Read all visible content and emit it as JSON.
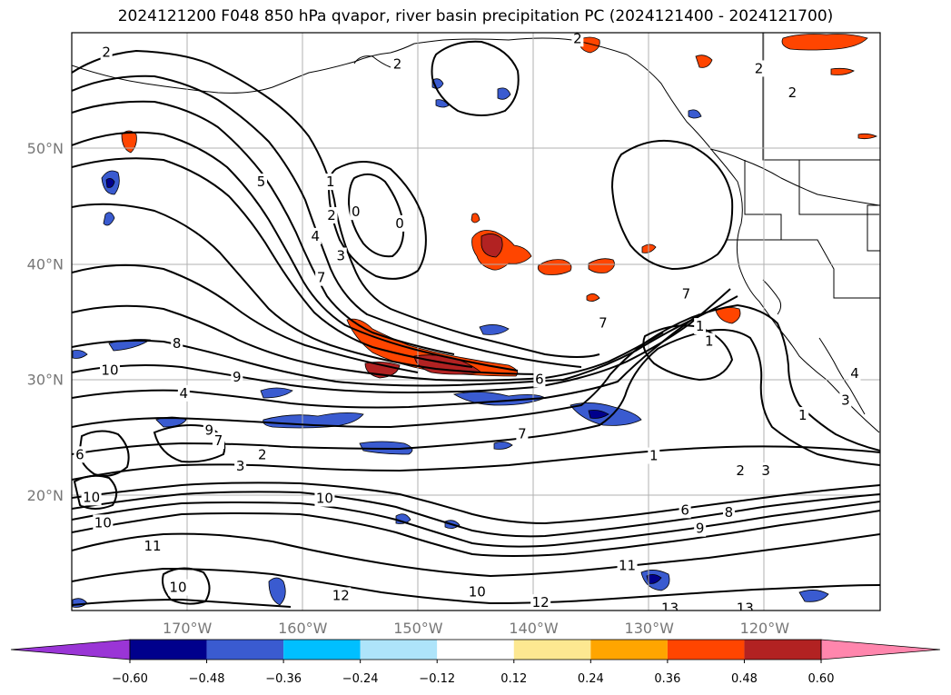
{
  "title": "2024121200 F048 850 hPa qvapor, river basin precipitation PC (2024121400 - 2024121700)",
  "map": {
    "lon_range": [
      -180,
      -110
    ],
    "lat_range": [
      10,
      60
    ],
    "lon_ticks": [
      {
        "value": -170,
        "label": "170°W"
      },
      {
        "value": -160,
        "label": "160°W"
      },
      {
        "value": -150,
        "label": "150°W"
      },
      {
        "value": -140,
        "label": "140°W"
      },
      {
        "value": -130,
        "label": "130°W"
      },
      {
        "value": -120,
        "label": "120°W"
      }
    ],
    "lat_ticks": [
      {
        "value": 20,
        "label": "20°N"
      },
      {
        "value": 30,
        "label": "30°N"
      },
      {
        "value": 40,
        "label": "40°N"
      },
      {
        "value": 50,
        "label": "50°N"
      }
    ],
    "gridlines": true,
    "contour_labels": [
      {
        "text": "2",
        "lon": -177,
        "lat": 58.3
      },
      {
        "text": "2",
        "lon": -151.8,
        "lat": 57.3
      },
      {
        "text": "2",
        "lon": -136.2,
        "lat": 59.5
      },
      {
        "text": "2",
        "lon": -120.5,
        "lat": 56.9
      },
      {
        "text": "2",
        "lon": -117.6,
        "lat": 54.8
      },
      {
        "text": "5",
        "lon": -163.6,
        "lat": 47.1
      },
      {
        "text": "1",
        "lon": -157.6,
        "lat": 47.1
      },
      {
        "text": "2",
        "lon": -157.5,
        "lat": 44.2
      },
      {
        "text": "0",
        "lon": -155.4,
        "lat": 44.5
      },
      {
        "text": "0",
        "lon": -151.6,
        "lat": 43.5
      },
      {
        "text": "4",
        "lon": -158.9,
        "lat": 42.4
      },
      {
        "text": "3",
        "lon": -156.7,
        "lat": 40.7
      },
      {
        "text": "7",
        "lon": -158.4,
        "lat": 38.8
      },
      {
        "text": "8",
        "lon": -170.9,
        "lat": 33.1
      },
      {
        "text": "10",
        "lon": -176.7,
        "lat": 30.8
      },
      {
        "text": "9",
        "lon": -165.7,
        "lat": 30.2
      },
      {
        "text": "4",
        "lon": -170.3,
        "lat": 28.8
      },
      {
        "text": "6",
        "lon": -139.5,
        "lat": 30.0
      },
      {
        "text": "7",
        "lon": -134.0,
        "lat": 34.9
      },
      {
        "text": "7",
        "lon": -126.8,
        "lat": 37.4
      },
      {
        "text": "1",
        "lon": -125.6,
        "lat": 34.6
      },
      {
        "text": "1",
        "lon": -124.8,
        "lat": 33.3
      },
      {
        "text": "4",
        "lon": -112.2,
        "lat": 30.5
      },
      {
        "text": "3",
        "lon": -113.0,
        "lat": 28.2
      },
      {
        "text": "1",
        "lon": -116.7,
        "lat": 26.9
      },
      {
        "text": "7",
        "lon": -141.0,
        "lat": 25.3
      },
      {
        "text": "9",
        "lon": -168.1,
        "lat": 25.6
      },
      {
        "text": "7",
        "lon": -167.3,
        "lat": 24.7
      },
      {
        "text": "2",
        "lon": -163.5,
        "lat": 23.5
      },
      {
        "text": "3",
        "lon": -165.4,
        "lat": 22.5
      },
      {
        "text": "1",
        "lon": -129.6,
        "lat": 23.4
      },
      {
        "text": "2",
        "lon": -122.1,
        "lat": 22.1
      },
      {
        "text": "3",
        "lon": -119.9,
        "lat": 22.1
      },
      {
        "text": "6",
        "lon": -179.3,
        "lat": 23.5
      },
      {
        "text": "10",
        "lon": -178.3,
        "lat": 19.8
      },
      {
        "text": "10",
        "lon": -158.1,
        "lat": 19.7
      },
      {
        "text": "10",
        "lon": -177.3,
        "lat": 17.6
      },
      {
        "text": "6",
        "lon": -126.9,
        "lat": 18.7
      },
      {
        "text": "8",
        "lon": -123.1,
        "lat": 18.5
      },
      {
        "text": "9",
        "lon": -125.6,
        "lat": 17.1
      },
      {
        "text": "11",
        "lon": -173.0,
        "lat": 15.6
      },
      {
        "text": "10",
        "lon": -170.8,
        "lat": 12.0
      },
      {
        "text": "11",
        "lon": -131.9,
        "lat": 13.9
      },
      {
        "text": "10",
        "lon": -144.9,
        "lat": 11.6
      },
      {
        "text": "12",
        "lon": -156.7,
        "lat": 11.3
      },
      {
        "text": "12",
        "lon": -139.4,
        "lat": 10.7
      },
      {
        "text": "13",
        "lon": -128.2,
        "lat": 10.2
      },
      {
        "text": "13",
        "lon": -121.7,
        "lat": 10.2
      }
    ]
  },
  "colorbar": {
    "levels": [
      "−0.60",
      "−0.48",
      "−0.36",
      "−0.24",
      "−0.12",
      "0.12",
      "0.24",
      "0.36",
      "0.48",
      "0.60"
    ],
    "colors": [
      "#9a35d6",
      "#00008c",
      "#3a5bd0",
      "#00bfff",
      "#aee4fa",
      "#ffffff",
      "#fde891",
      "#ffa500",
      "#ff4500",
      "#b22222",
      "#ff86ad"
    ]
  }
}
